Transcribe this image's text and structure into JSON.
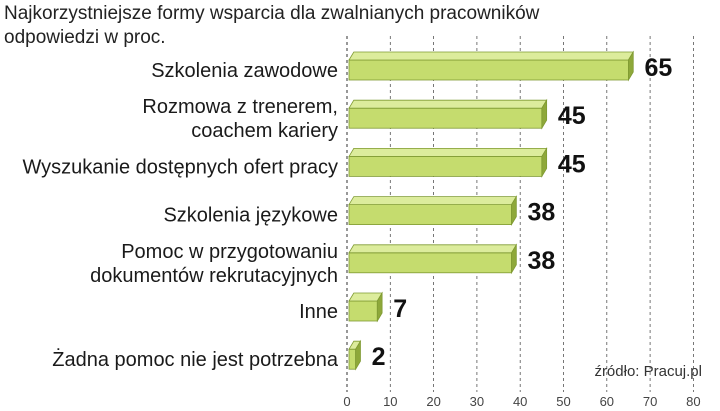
{
  "chart_data": {
    "type": "bar",
    "orientation": "horizontal",
    "title": "Najkorzystniejsze formy wsparcia dla zwalnianych pracowników",
    "subtitle": "odpowiedzi w proc.",
    "categories": [
      [
        "Szkolenia zawodowe"
      ],
      [
        "Rozmowa z trenerem,",
        "coachem kariery"
      ],
      [
        "Wyszukanie dostępnych ofert pracy"
      ],
      [
        "Szkolenia językowe"
      ],
      [
        "Pomoc w przygotowaniu",
        "dokumentów rekrutacyjnych"
      ],
      [
        "Inne"
      ],
      [
        "Żadna pomoc nie jest potrzebna"
      ]
    ],
    "values": [
      65,
      45,
      45,
      38,
      38,
      7,
      2
    ],
    "value_labels": [
      "65",
      "45",
      "45",
      "38",
      "38",
      "7",
      "2"
    ],
    "xlim": [
      0,
      80
    ],
    "xticks": [
      "0",
      "10",
      "20",
      "30",
      "40",
      "50",
      "60",
      "70",
      "80"
    ],
    "grid": true,
    "source": "źródło: Pracuj.pl",
    "colors": {
      "bar_front": "#c5dc6e",
      "bar_top": "#dcec9c",
      "bar_side": "#8ea83a",
      "bar_edge": "#7f9a32",
      "grid": "#555555"
    }
  }
}
